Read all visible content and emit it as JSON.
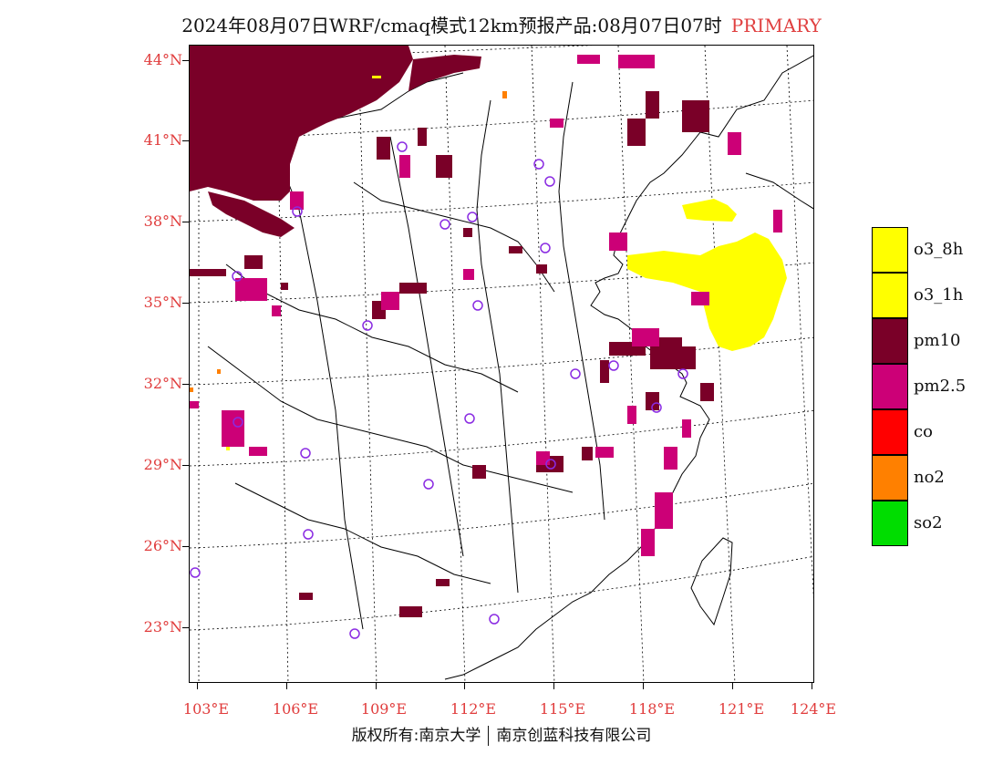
{
  "title": {
    "main": "2024年08月07日WRF/cmaq模式12km预报产品:08月07日07时",
    "tag": "PRIMARY"
  },
  "latitude_labels": [
    "44°N",
    "41°N",
    "38°N",
    "35°N",
    "32°N",
    "29°N",
    "26°N",
    "23°N"
  ],
  "longitude_labels": [
    "103°E",
    "106°E",
    "109°E",
    "112°E",
    "115°E",
    "118°E",
    "121°E",
    "124°E"
  ],
  "legend": {
    "items": [
      {
        "label": "o3_8h",
        "color": "#ffff00"
      },
      {
        "label": "o3_1h",
        "color": "#ffff00"
      },
      {
        "label": "pm10",
        "color": "#7a0028"
      },
      {
        "label": "pm2.5",
        "color": "#cc0077"
      },
      {
        "label": "co",
        "color": "#ff0000"
      },
      {
        "label": "no2",
        "color": "#ff8000"
      },
      {
        "label": "so2",
        "color": "#00dd00"
      }
    ]
  },
  "copyright": {
    "left": "版权所有:南京大学",
    "right": "南京创蓝科技有限公司"
  },
  "colors": {
    "pm10": "#7a0028",
    "pm25": "#cc0077",
    "o3": "#ffff00",
    "no2": "#ff8000",
    "station": "#8a2be2",
    "axis_label": "#e03c3c"
  }
}
